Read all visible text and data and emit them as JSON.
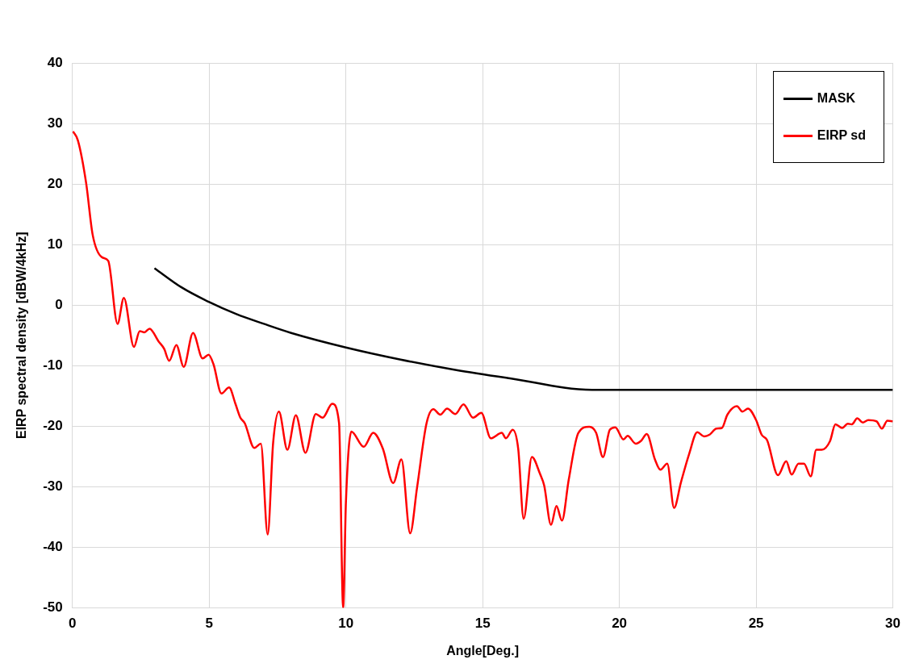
{
  "chart_data": {
    "type": "line",
    "xlabel": "Angle[Deg.]",
    "ylabel": "EIRP spectral density [dBW/4kHz]",
    "xlim": [
      0,
      30
    ],
    "xticks": [
      0,
      5,
      10,
      15,
      20,
      25,
      30
    ],
    "ylim": [
      -50,
      40
    ],
    "yticks": [
      -50,
      -40,
      -30,
      -20,
      -10,
      0,
      10,
      20,
      30,
      40
    ],
    "grid": true,
    "legend": "top right",
    "marker": "none",
    "line_style": "solid",
    "series": [
      {
        "name": "MASK",
        "color": "#000000",
        "x": [
          3,
          4,
          5,
          6,
          7,
          8,
          10,
          12,
          14,
          16,
          19,
          30
        ],
        "values": [
          6.1,
          2.9,
          0.5,
          -1.5,
          -3.1,
          -4.6,
          -7.0,
          -9.0,
          -10.7,
          -12.1,
          -14.0,
          -14.0
        ]
      },
      {
        "name": "EIRP sd",
        "color": "#ff0000",
        "x": [
          0.02,
          0.2,
          0.5,
          0.74,
          1.08,
          1.31,
          1.65,
          1.88,
          2.25,
          2.46,
          2.63,
          2.82,
          3.15,
          3.35,
          3.54,
          3.8,
          4.07,
          4.41,
          4.76,
          4.98,
          5.16,
          5.45,
          5.73,
          5.96,
          6.14,
          6.3,
          6.65,
          6.89,
          7.14,
          7.34,
          7.55,
          7.86,
          8.17,
          8.52,
          8.9,
          9.15,
          9.5,
          9.75,
          9.9,
          10.0,
          10.2,
          10.65,
          11.0,
          11.35,
          11.73,
          12.03,
          12.35,
          12.6,
          12.95,
          13.2,
          13.45,
          13.7,
          14.0,
          14.3,
          14.65,
          14.95,
          15.3,
          15.7,
          15.85,
          16.1,
          16.3,
          16.5,
          16.8,
          17.1,
          17.25,
          17.5,
          17.7,
          17.9,
          18.15,
          18.5,
          18.9,
          19.15,
          19.4,
          19.65,
          19.85,
          20.15,
          20.3,
          20.6,
          20.8,
          21.0,
          21.3,
          21.5,
          21.75,
          22.0,
          22.25,
          22.55,
          22.85,
          23.1,
          23.3,
          23.55,
          23.75,
          23.95,
          24.3,
          24.5,
          24.7,
          25.0,
          25.2,
          25.4,
          25.8,
          26.1,
          26.3,
          26.55,
          26.75,
          27.0,
          27.2,
          27.4,
          27.7,
          27.9,
          28.15,
          28.35,
          28.5,
          28.7,
          28.9,
          29.1,
          29.4,
          29.6,
          29.8,
          30.0
        ],
        "values": [
          28.7,
          27.2,
          20.2,
          11.6,
          7.9,
          7.3,
          -3.1,
          1.2,
          -6.9,
          -4.3,
          -4.5,
          -3.9,
          -6.0,
          -7.2,
          -9.2,
          -6.6,
          -10.2,
          -4.6,
          -8.8,
          -8.2,
          -9.8,
          -14.6,
          -13.6,
          -16.3,
          -18.6,
          -19.5,
          -23.6,
          -22.9,
          -37.9,
          -22.7,
          -17.6,
          -23.9,
          -18.2,
          -24.4,
          -18.0,
          -18.6,
          -16.3,
          -19.5,
          -50,
          -32.6,
          -20.9,
          -23.4,
          -21.1,
          -23.7,
          -29.4,
          -25.5,
          -37.7,
          -30.2,
          -19.5,
          -17.2,
          -18.1,
          -17.1,
          -18.0,
          -16.4,
          -18.6,
          -17.8,
          -22.0,
          -21.1,
          -22.0,
          -20.6,
          -23.7,
          -35.3,
          -25.1,
          -27.9,
          -29.8,
          -36.3,
          -33.2,
          -35.6,
          -28.8,
          -21.1,
          -20.1,
          -21.1,
          -25.1,
          -20.6,
          -20.2,
          -22.2,
          -21.6,
          -22.9,
          -22.4,
          -21.3,
          -25.5,
          -27.2,
          -26.2,
          -33.5,
          -29.3,
          -24.6,
          -21.0,
          -21.7,
          -21.4,
          -20.4,
          -20.3,
          -18.1,
          -16.7,
          -17.6,
          -17.1,
          -19.0,
          -21.4,
          -22.3,
          -28.1,
          -25.8,
          -28.0,
          -26.2,
          -26.2,
          -28.3,
          -23.9,
          -23.9,
          -22.5,
          -19.7,
          -20.3,
          -19.6,
          -19.7,
          -18.7,
          -19.4,
          -19.0,
          -19.2,
          -20.4,
          -19.1,
          -19.2
        ]
      }
    ]
  }
}
